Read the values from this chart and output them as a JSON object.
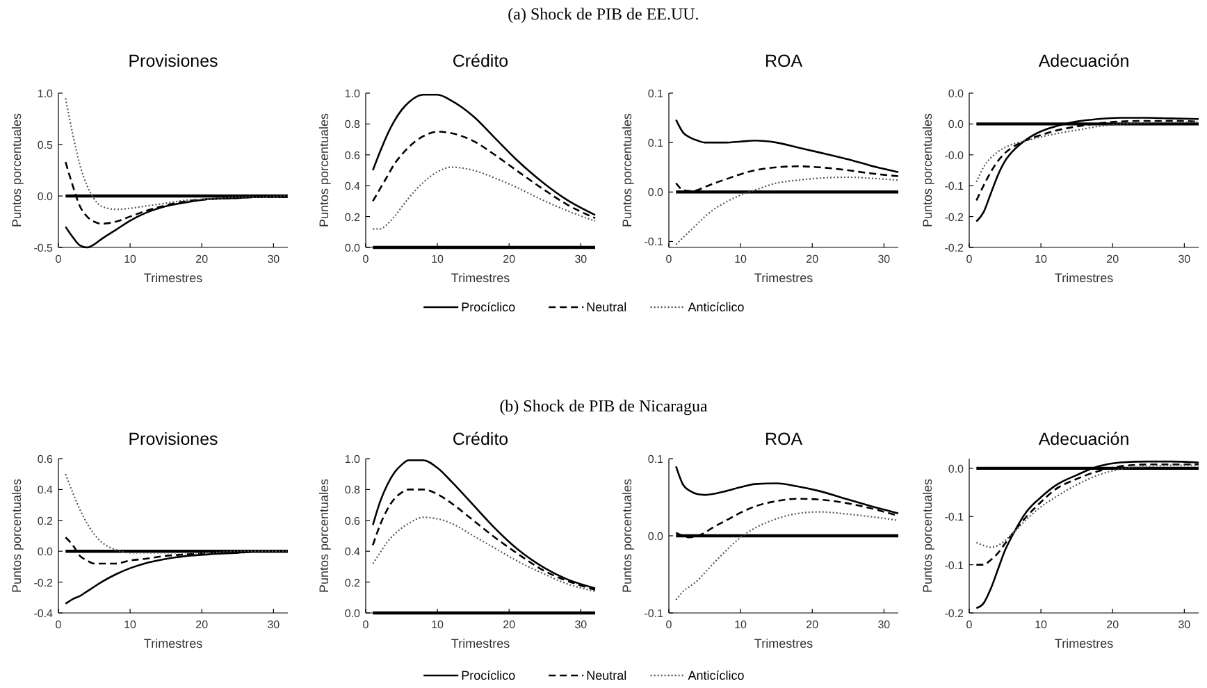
{
  "chart_data": [
    {
      "type": "line",
      "title": "Provisiones",
      "xlabel": "Trimestres",
      "ylabel": "Puntos porcentuales",
      "x": [
        1,
        2,
        3,
        4,
        5,
        6,
        8,
        10,
        12,
        15,
        18,
        21,
        25,
        28,
        32
      ],
      "xlim": [
        0,
        32
      ],
      "xticks": [
        0,
        10,
        20,
        30
      ],
      "ylim": [
        -0.5,
        1.0
      ],
      "yticks": [
        {
          "value": 1.0,
          "label": "1.0"
        },
        {
          "value": 0.5,
          "label": "0.5"
        },
        {
          "value": 0,
          "label": "0.0"
        },
        {
          "value": -0.5,
          "label": "-0.5"
        }
      ],
      "ref_lines": [
        {
          "axis": "y",
          "value": 0,
          "color": "#000000"
        }
      ],
      "series": [
        {
          "color": "#000000",
          "line_style": "solid",
          "values": [
            -0.3,
            -0.4,
            -0.48,
            -0.5,
            -0.47,
            -0.42,
            -0.33,
            -0.24,
            -0.17,
            -0.1,
            -0.06,
            -0.03,
            -0.02,
            -0.01,
            -0.01
          ]
        },
        {
          "color": "#000000",
          "line_style": "dashed",
          "values": [
            0.33,
            0.1,
            -0.1,
            -0.2,
            -0.25,
            -0.27,
            -0.25,
            -0.2,
            -0.15,
            -0.09,
            -0.05,
            -0.03,
            -0.02,
            -0.01,
            -0.01
          ]
        },
        {
          "color": "#555555",
          "line_style": "dotted",
          "values": [
            0.95,
            0.6,
            0.3,
            0.1,
            -0.03,
            -0.1,
            -0.13,
            -0.12,
            -0.1,
            -0.07,
            -0.04,
            -0.03,
            -0.01,
            -0.01,
            0
          ]
        }
      ]
    },
    {
      "type": "line",
      "subtitle": "(a) Shock de PIB de EE.UU.",
      "title": "Crédito",
      "xlabel": "Trimestres",
      "ylabel": "Puntos porcentuales",
      "legend": "bottom",
      "x": [
        1,
        2,
        3,
        4,
        5,
        6,
        8,
        10,
        12,
        15,
        18,
        21,
        25,
        28,
        32
      ],
      "xlim": [
        0,
        32
      ],
      "xticks": [
        0,
        10,
        20,
        30
      ],
      "ylim": [
        0,
        1.0
      ],
      "yticks": [
        {
          "value": 0,
          "label": "0.0"
        },
        {
          "value": 0.2,
          "label": "0.2"
        },
        {
          "value": 0.4,
          "label": "0.4"
        },
        {
          "value": 0.6,
          "label": "0.6"
        },
        {
          "value": 0.8,
          "label": "0.8"
        },
        {
          "value": 1.0,
          "label": "1.0"
        }
      ],
      "ref_lines": [
        {
          "axis": "y",
          "value": 0,
          "color": "#000000"
        }
      ],
      "series": [
        {
          "name": "Procíclico",
          "color": "#000000",
          "line_style": "solid",
          "values": [
            0.5,
            0.62,
            0.73,
            0.82,
            0.89,
            0.94,
            0.99,
            0.99,
            0.95,
            0.85,
            0.71,
            0.57,
            0.41,
            0.31,
            0.21
          ]
        },
        {
          "name": "Neutral",
          "color": "#000000",
          "line_style": "dashed",
          "values": [
            0.3,
            0.38,
            0.46,
            0.54,
            0.6,
            0.65,
            0.72,
            0.75,
            0.74,
            0.69,
            0.6,
            0.5,
            0.37,
            0.28,
            0.19
          ]
        },
        {
          "name": "Anticíclico",
          "color": "#555555",
          "line_style": "dotted",
          "values": [
            0.12,
            0.12,
            0.15,
            0.2,
            0.26,
            0.32,
            0.42,
            0.49,
            0.52,
            0.5,
            0.45,
            0.39,
            0.3,
            0.24,
            0.17
          ]
        }
      ]
    },
    {
      "type": "line",
      "title": "ROA",
      "xlabel": "Trimestres",
      "ylabel": "Puntos porcentuales",
      "x": [
        1,
        2,
        3,
        4,
        5,
        6,
        8,
        10,
        12,
        15,
        18,
        21,
        25,
        28,
        32
      ],
      "xlim": [
        0,
        32
      ],
      "xticks": [
        0,
        10,
        20,
        30
      ],
      "ylim": [
        -0.056,
        0.1
      ],
      "yticks": [
        {
          "value": 0.1,
          "label": "0.1"
        },
        {
          "value": 0.05,
          "label": "0.1"
        },
        {
          "value": 0,
          "label": "0.0"
        },
        {
          "value": -0.05,
          "label": "-0.1"
        }
      ],
      "ref_lines": [
        {
          "axis": "y",
          "value": 0,
          "color": "#000000"
        }
      ],
      "series": [
        {
          "color": "#000000",
          "line_style": "solid",
          "values": [
            0.073,
            0.06,
            0.055,
            0.052,
            0.05,
            0.05,
            0.05,
            0.051,
            0.052,
            0.05,
            0.045,
            0.04,
            0.033,
            0.027,
            0.02
          ]
        },
        {
          "color": "#000000",
          "line_style": "dashed",
          "values": [
            0.009,
            0.002,
            0.001,
            0.002,
            0.005,
            0.008,
            0.013,
            0.018,
            0.022,
            0.025,
            0.026,
            0.025,
            0.022,
            0.019,
            0.016
          ]
        },
        {
          "color": "#555555",
          "line_style": "dotted",
          "values": [
            -0.053,
            -0.046,
            -0.039,
            -0.032,
            -0.025,
            -0.019,
            -0.01,
            -0.003,
            0.002,
            0.009,
            0.012,
            0.014,
            0.015,
            0.014,
            0.012
          ]
        }
      ]
    },
    {
      "type": "line",
      "title": "Adecuación",
      "xlabel": "Trimestres",
      "ylabel": "Puntos porcentuales",
      "x": [
        1,
        2,
        3,
        4,
        5,
        6,
        8,
        10,
        12,
        15,
        18,
        21,
        25,
        28,
        32
      ],
      "xlim": [
        0,
        32
      ],
      "xticks": [
        0,
        10,
        20,
        30
      ],
      "ylim": [
        -0.2,
        0.05
      ],
      "yticks": [
        {
          "value": 0.05,
          "label": "0.0"
        },
        {
          "value": 0,
          "label": "0.0"
        },
        {
          "value": -0.05,
          "label": "-0.0"
        },
        {
          "value": -0.1,
          "label": "-0.1"
        },
        {
          "value": -0.15,
          "label": "-0.2"
        },
        {
          "value": -0.2,
          "label": "-0.2"
        }
      ],
      "ref_lines": [
        {
          "axis": "y",
          "value": 0,
          "color": "#000000"
        }
      ],
      "series": [
        {
          "color": "#000000",
          "line_style": "solid",
          "values": [
            -0.158,
            -0.143,
            -0.113,
            -0.083,
            -0.06,
            -0.045,
            -0.025,
            -0.012,
            -0.004,
            0.004,
            0.008,
            0.01,
            0.01,
            0.009,
            0.008
          ]
        },
        {
          "color": "#000000",
          "line_style": "dashed",
          "values": [
            -0.124,
            -0.1,
            -0.078,
            -0.06,
            -0.047,
            -0.038,
            -0.026,
            -0.018,
            -0.011,
            -0.004,
            0.001,
            0.004,
            0.005,
            0.005,
            0.004
          ]
        },
        {
          "color": "#555555",
          "line_style": "dotted",
          "values": [
            -0.094,
            -0.07,
            -0.055,
            -0.045,
            -0.038,
            -0.033,
            -0.027,
            -0.021,
            -0.016,
            -0.01,
            -0.004,
            0,
            0.002,
            0.003,
            0.003
          ]
        }
      ]
    },
    {
      "type": "line",
      "title": "Provisiones",
      "xlabel": "Trimestres",
      "ylabel": "Puntos porcentuales",
      "x": [
        1,
        2,
        3,
        4,
        5,
        6,
        8,
        10,
        12,
        15,
        18,
        21,
        25,
        28,
        32
      ],
      "xlim": [
        0,
        32
      ],
      "xticks": [
        0,
        10,
        20,
        30
      ],
      "ylim": [
        -0.4,
        0.6
      ],
      "yticks": [
        {
          "value": 0.6,
          "label": "0.6"
        },
        {
          "value": 0.4,
          "label": "0.4"
        },
        {
          "value": 0.2,
          "label": "0.2"
        },
        {
          "value": 0,
          "label": "0.0"
        },
        {
          "value": -0.2,
          "label": "-0.2"
        },
        {
          "value": -0.4,
          "label": "-0.4"
        }
      ],
      "ref_lines": [
        {
          "axis": "y",
          "value": 0,
          "color": "#000000"
        }
      ],
      "series": [
        {
          "color": "#000000",
          "line_style": "solid",
          "values": [
            -0.34,
            -0.31,
            -0.29,
            -0.26,
            -0.23,
            -0.2,
            -0.15,
            -0.11,
            -0.08,
            -0.05,
            -0.03,
            -0.02,
            -0.01,
            0,
            0
          ]
        },
        {
          "color": "#000000",
          "line_style": "dashed",
          "values": [
            0.09,
            0.04,
            -0.03,
            -0.06,
            -0.08,
            -0.08,
            -0.08,
            -0.06,
            -0.05,
            -0.03,
            -0.02,
            -0.01,
            -0.01,
            0,
            0
          ]
        },
        {
          "color": "#555555",
          "line_style": "dotted",
          "values": [
            0.5,
            0.38,
            0.27,
            0.18,
            0.11,
            0.06,
            0.01,
            -0.01,
            -0.01,
            -0.01,
            -0.01,
            -0.01,
            0,
            0,
            0
          ]
        }
      ]
    },
    {
      "type": "line",
      "subtitle": "(b) Shock de PIB de Nicaragua",
      "title": "Crédito",
      "xlabel": "Trimestres",
      "ylabel": "Puntos porcentuales",
      "legend": "bottom",
      "x": [
        1,
        2,
        3,
        4,
        5,
        6,
        8,
        10,
        12,
        15,
        18,
        21,
        25,
        28,
        32
      ],
      "xlim": [
        0,
        32
      ],
      "xticks": [
        0,
        10,
        20,
        30
      ],
      "ylim": [
        0,
        1.0
      ],
      "yticks": [
        {
          "value": 0,
          "label": "0.0"
        },
        {
          "value": 0.2,
          "label": "0.2"
        },
        {
          "value": 0.4,
          "label": "0.4"
        },
        {
          "value": 0.6,
          "label": "0.6"
        },
        {
          "value": 0.8,
          "label": "0.8"
        },
        {
          "value": 1.0,
          "label": "1.0"
        }
      ],
      "ref_lines": [
        {
          "axis": "y",
          "value": 0,
          "color": "#000000"
        }
      ],
      "series": [
        {
          "name": "Procíclico",
          "color": "#000000",
          "line_style": "solid",
          "values": [
            0.57,
            0.72,
            0.83,
            0.91,
            0.96,
            0.99,
            0.99,
            0.94,
            0.85,
            0.7,
            0.55,
            0.42,
            0.29,
            0.22,
            0.16
          ]
        },
        {
          "name": "Neutral",
          "color": "#000000",
          "line_style": "dashed",
          "values": [
            0.44,
            0.57,
            0.67,
            0.74,
            0.78,
            0.8,
            0.8,
            0.77,
            0.71,
            0.6,
            0.49,
            0.39,
            0.27,
            0.21,
            0.15
          ]
        },
        {
          "name": "Anticíclico",
          "color": "#555555",
          "line_style": "dotted",
          "values": [
            0.32,
            0.39,
            0.46,
            0.51,
            0.55,
            0.58,
            0.62,
            0.61,
            0.58,
            0.5,
            0.42,
            0.34,
            0.25,
            0.19,
            0.14
          ]
        }
      ]
    },
    {
      "type": "line",
      "title": "ROA",
      "xlabel": "Trimestres",
      "ylabel": "Puntos porcentuales",
      "x": [
        1,
        2,
        3,
        4,
        5,
        6,
        8,
        10,
        12,
        15,
        18,
        21,
        25,
        28,
        32
      ],
      "xlim": [
        0,
        32
      ],
      "xticks": [
        0,
        10,
        20,
        30
      ],
      "ylim": [
        -0.1,
        0.1
      ],
      "yticks": [
        {
          "value": 0.1,
          "label": "0.1"
        },
        {
          "value": 0,
          "label": "0.0"
        },
        {
          "value": -0.1,
          "label": "-0.1"
        }
      ],
      "ref_lines": [
        {
          "axis": "y",
          "value": 0,
          "color": "#000000"
        }
      ],
      "series": [
        {
          "color": "#000000",
          "line_style": "solid",
          "values": [
            0.09,
            0.066,
            0.058,
            0.054,
            0.053,
            0.054,
            0.058,
            0.063,
            0.067,
            0.068,
            0.064,
            0.058,
            0.047,
            0.039,
            0.029
          ]
        },
        {
          "color": "#000000",
          "line_style": "dashed",
          "values": [
            0.004,
            0,
            -0.002,
            0,
            0.004,
            0.01,
            0.02,
            0.03,
            0.038,
            0.045,
            0.048,
            0.047,
            0.042,
            0.036,
            0.026
          ]
        },
        {
          "color": "#555555",
          "line_style": "dotted",
          "values": [
            -0.083,
            -0.072,
            -0.065,
            -0.058,
            -0.048,
            -0.038,
            -0.019,
            -0.002,
            0.01,
            0.022,
            0.029,
            0.031,
            0.028,
            0.025,
            0.02
          ]
        }
      ]
    },
    {
      "type": "line",
      "title": "Adecuación",
      "xlabel": "Trimestres",
      "ylabel": "Puntos porcentuales",
      "x": [
        1,
        2,
        3,
        4,
        5,
        6,
        8,
        10,
        12,
        15,
        18,
        21,
        25,
        28,
        32
      ],
      "xlim": [
        0,
        32
      ],
      "xticks": [
        0,
        10,
        20,
        30
      ],
      "ylim": [
        -0.15,
        0.01
      ],
      "yticks": [
        {
          "value": 0,
          "label": "0.0"
        },
        {
          "value": -0.05,
          "label": "-0.1"
        },
        {
          "value": -0.1,
          "label": "-0.1"
        },
        {
          "value": -0.15,
          "label": "-0.2"
        }
      ],
      "ref_lines": [
        {
          "axis": "y",
          "value": 0,
          "color": "#000000"
        }
      ],
      "series": [
        {
          "color": "#000000",
          "line_style": "solid",
          "values": [
            -0.145,
            -0.14,
            -0.125,
            -0.105,
            -0.085,
            -0.07,
            -0.045,
            -0.03,
            -0.018,
            -0.007,
            0.002,
            0.006,
            0.007,
            0.007,
            0.006
          ]
        },
        {
          "color": "#000000",
          "line_style": "dashed",
          "values": [
            -0.1,
            -0.1,
            -0.095,
            -0.088,
            -0.078,
            -0.068,
            -0.05,
            -0.035,
            -0.022,
            -0.011,
            -0.003,
            0.002,
            0.004,
            0.004,
            0.004
          ]
        },
        {
          "color": "#555555",
          "line_style": "dotted",
          "values": [
            -0.077,
            -0.08,
            -0.082,
            -0.08,
            -0.075,
            -0.068,
            -0.053,
            -0.04,
            -0.03,
            -0.017,
            -0.007,
            -0.001,
            0.002,
            0.003,
            0.003
          ]
        }
      ]
    }
  ]
}
